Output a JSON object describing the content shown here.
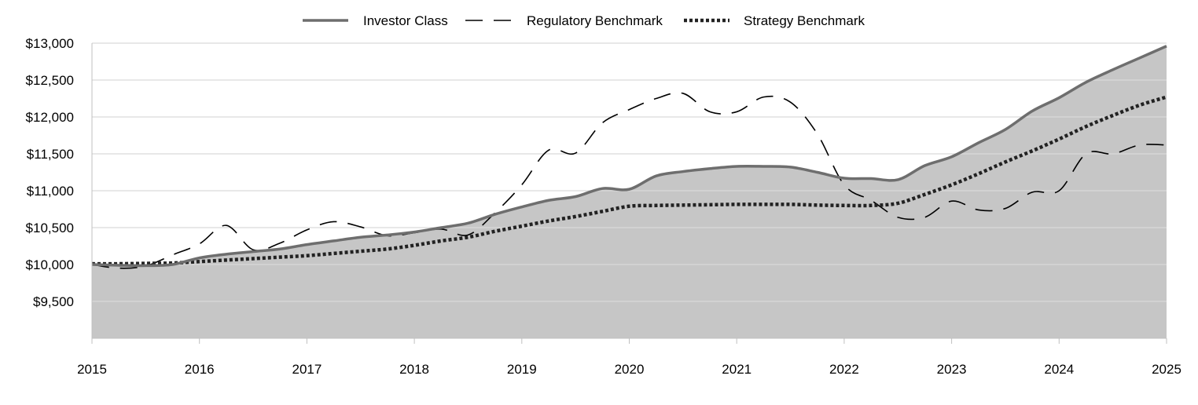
{
  "chart_data": {
    "type": "line",
    "title": "",
    "xlabel": "",
    "ylabel": "",
    "x_ticks": [
      "2015",
      "2016",
      "2017",
      "2018",
      "2019",
      "2020",
      "2021",
      "2022",
      "2023",
      "2024",
      "2025"
    ],
    "y_ticks": [
      "$9,500",
      "$10,000",
      "$10,500",
      "$11,000",
      "$11,500",
      "$12,000",
      "$12,500",
      "$13,000"
    ],
    "xlim": [
      2015,
      2025
    ],
    "ylim": [
      9000,
      13000
    ],
    "grid": true,
    "legend_position": "top-center",
    "series": [
      {
        "name": "Investor Class",
        "style": "solid",
        "color": "#6e6e6e",
        "fill": "#c6c6c6",
        "points": [
          [
            2015.0,
            10000
          ],
          [
            2015.25,
            9990
          ],
          [
            2015.5,
            9985
          ],
          [
            2015.75,
            10000
          ],
          [
            2016.0,
            10090
          ],
          [
            2016.25,
            10140
          ],
          [
            2016.5,
            10175
          ],
          [
            2016.75,
            10210
          ],
          [
            2017.0,
            10270
          ],
          [
            2017.25,
            10320
          ],
          [
            2017.5,
            10370
          ],
          [
            2017.75,
            10400
          ],
          [
            2018.0,
            10440
          ],
          [
            2018.25,
            10500
          ],
          [
            2018.5,
            10560
          ],
          [
            2018.75,
            10680
          ],
          [
            2019.0,
            10780
          ],
          [
            2019.25,
            10870
          ],
          [
            2019.5,
            10920
          ],
          [
            2019.75,
            11030
          ],
          [
            2020.0,
            11020
          ],
          [
            2020.25,
            11200
          ],
          [
            2020.5,
            11260
          ],
          [
            2020.75,
            11300
          ],
          [
            2021.0,
            11330
          ],
          [
            2021.25,
            11330
          ],
          [
            2021.5,
            11320
          ],
          [
            2021.75,
            11250
          ],
          [
            2022.0,
            11170
          ],
          [
            2022.25,
            11165
          ],
          [
            2022.5,
            11150
          ],
          [
            2022.75,
            11340
          ],
          [
            2023.0,
            11460
          ],
          [
            2023.25,
            11650
          ],
          [
            2023.5,
            11830
          ],
          [
            2023.75,
            12080
          ],
          [
            2024.0,
            12260
          ],
          [
            2024.25,
            12470
          ],
          [
            2024.5,
            12640
          ],
          [
            2024.75,
            12800
          ],
          [
            2025.0,
            12960
          ]
        ]
      },
      {
        "name": "Regulatory Benchmark",
        "style": "dashed",
        "color": "#000000",
        "points": [
          [
            2015.0,
            10000
          ],
          [
            2015.25,
            9950
          ],
          [
            2015.5,
            9980
          ],
          [
            2015.75,
            10130
          ],
          [
            2016.0,
            10280
          ],
          [
            2016.25,
            10530
          ],
          [
            2016.5,
            10200
          ],
          [
            2016.75,
            10290
          ],
          [
            2017.0,
            10470
          ],
          [
            2017.25,
            10580
          ],
          [
            2017.5,
            10510
          ],
          [
            2017.75,
            10390
          ],
          [
            2018.0,
            10430
          ],
          [
            2018.25,
            10480
          ],
          [
            2018.5,
            10400
          ],
          [
            2018.75,
            10700
          ],
          [
            2019.0,
            11080
          ],
          [
            2019.25,
            11550
          ],
          [
            2019.5,
            11510
          ],
          [
            2019.75,
            11920
          ],
          [
            2020.0,
            12100
          ],
          [
            2020.25,
            12250
          ],
          [
            2020.5,
            12320
          ],
          [
            2020.75,
            12070
          ],
          [
            2021.0,
            12070
          ],
          [
            2021.25,
            12270
          ],
          [
            2021.5,
            12200
          ],
          [
            2021.75,
            11770
          ],
          [
            2022.0,
            11080
          ],
          [
            2022.25,
            10870
          ],
          [
            2022.5,
            10640
          ],
          [
            2022.75,
            10640
          ],
          [
            2023.0,
            10860
          ],
          [
            2023.25,
            10740
          ],
          [
            2023.5,
            10760
          ],
          [
            2023.75,
            10980
          ],
          [
            2024.0,
            11000
          ],
          [
            2024.25,
            11500
          ],
          [
            2024.5,
            11500
          ],
          [
            2024.75,
            11620
          ],
          [
            2025.0,
            11620
          ]
        ]
      },
      {
        "name": "Strategy Benchmark",
        "style": "dotted",
        "color": "#222222",
        "points": [
          [
            2015.0,
            10010
          ],
          [
            2015.25,
            10010
          ],
          [
            2015.5,
            10015
          ],
          [
            2015.75,
            10020
          ],
          [
            2016.0,
            10040
          ],
          [
            2016.25,
            10060
          ],
          [
            2016.5,
            10080
          ],
          [
            2016.75,
            10100
          ],
          [
            2017.0,
            10120
          ],
          [
            2017.25,
            10150
          ],
          [
            2017.5,
            10180
          ],
          [
            2017.75,
            10210
          ],
          [
            2018.0,
            10260
          ],
          [
            2018.25,
            10320
          ],
          [
            2018.5,
            10370
          ],
          [
            2018.75,
            10450
          ],
          [
            2019.0,
            10520
          ],
          [
            2019.25,
            10590
          ],
          [
            2019.5,
            10650
          ],
          [
            2019.75,
            10720
          ],
          [
            2020.0,
            10790
          ],
          [
            2020.25,
            10800
          ],
          [
            2020.5,
            10805
          ],
          [
            2020.75,
            10810
          ],
          [
            2021.0,
            10815
          ],
          [
            2021.25,
            10815
          ],
          [
            2021.5,
            10815
          ],
          [
            2021.75,
            10805
          ],
          [
            2022.0,
            10800
          ],
          [
            2022.25,
            10800
          ],
          [
            2022.5,
            10830
          ],
          [
            2022.75,
            10950
          ],
          [
            2023.0,
            11080
          ],
          [
            2023.25,
            11230
          ],
          [
            2023.5,
            11390
          ],
          [
            2023.75,
            11540
          ],
          [
            2024.0,
            11700
          ],
          [
            2024.25,
            11870
          ],
          [
            2024.5,
            12020
          ],
          [
            2024.75,
            12160
          ],
          [
            2025.0,
            12270
          ]
        ]
      }
    ]
  }
}
